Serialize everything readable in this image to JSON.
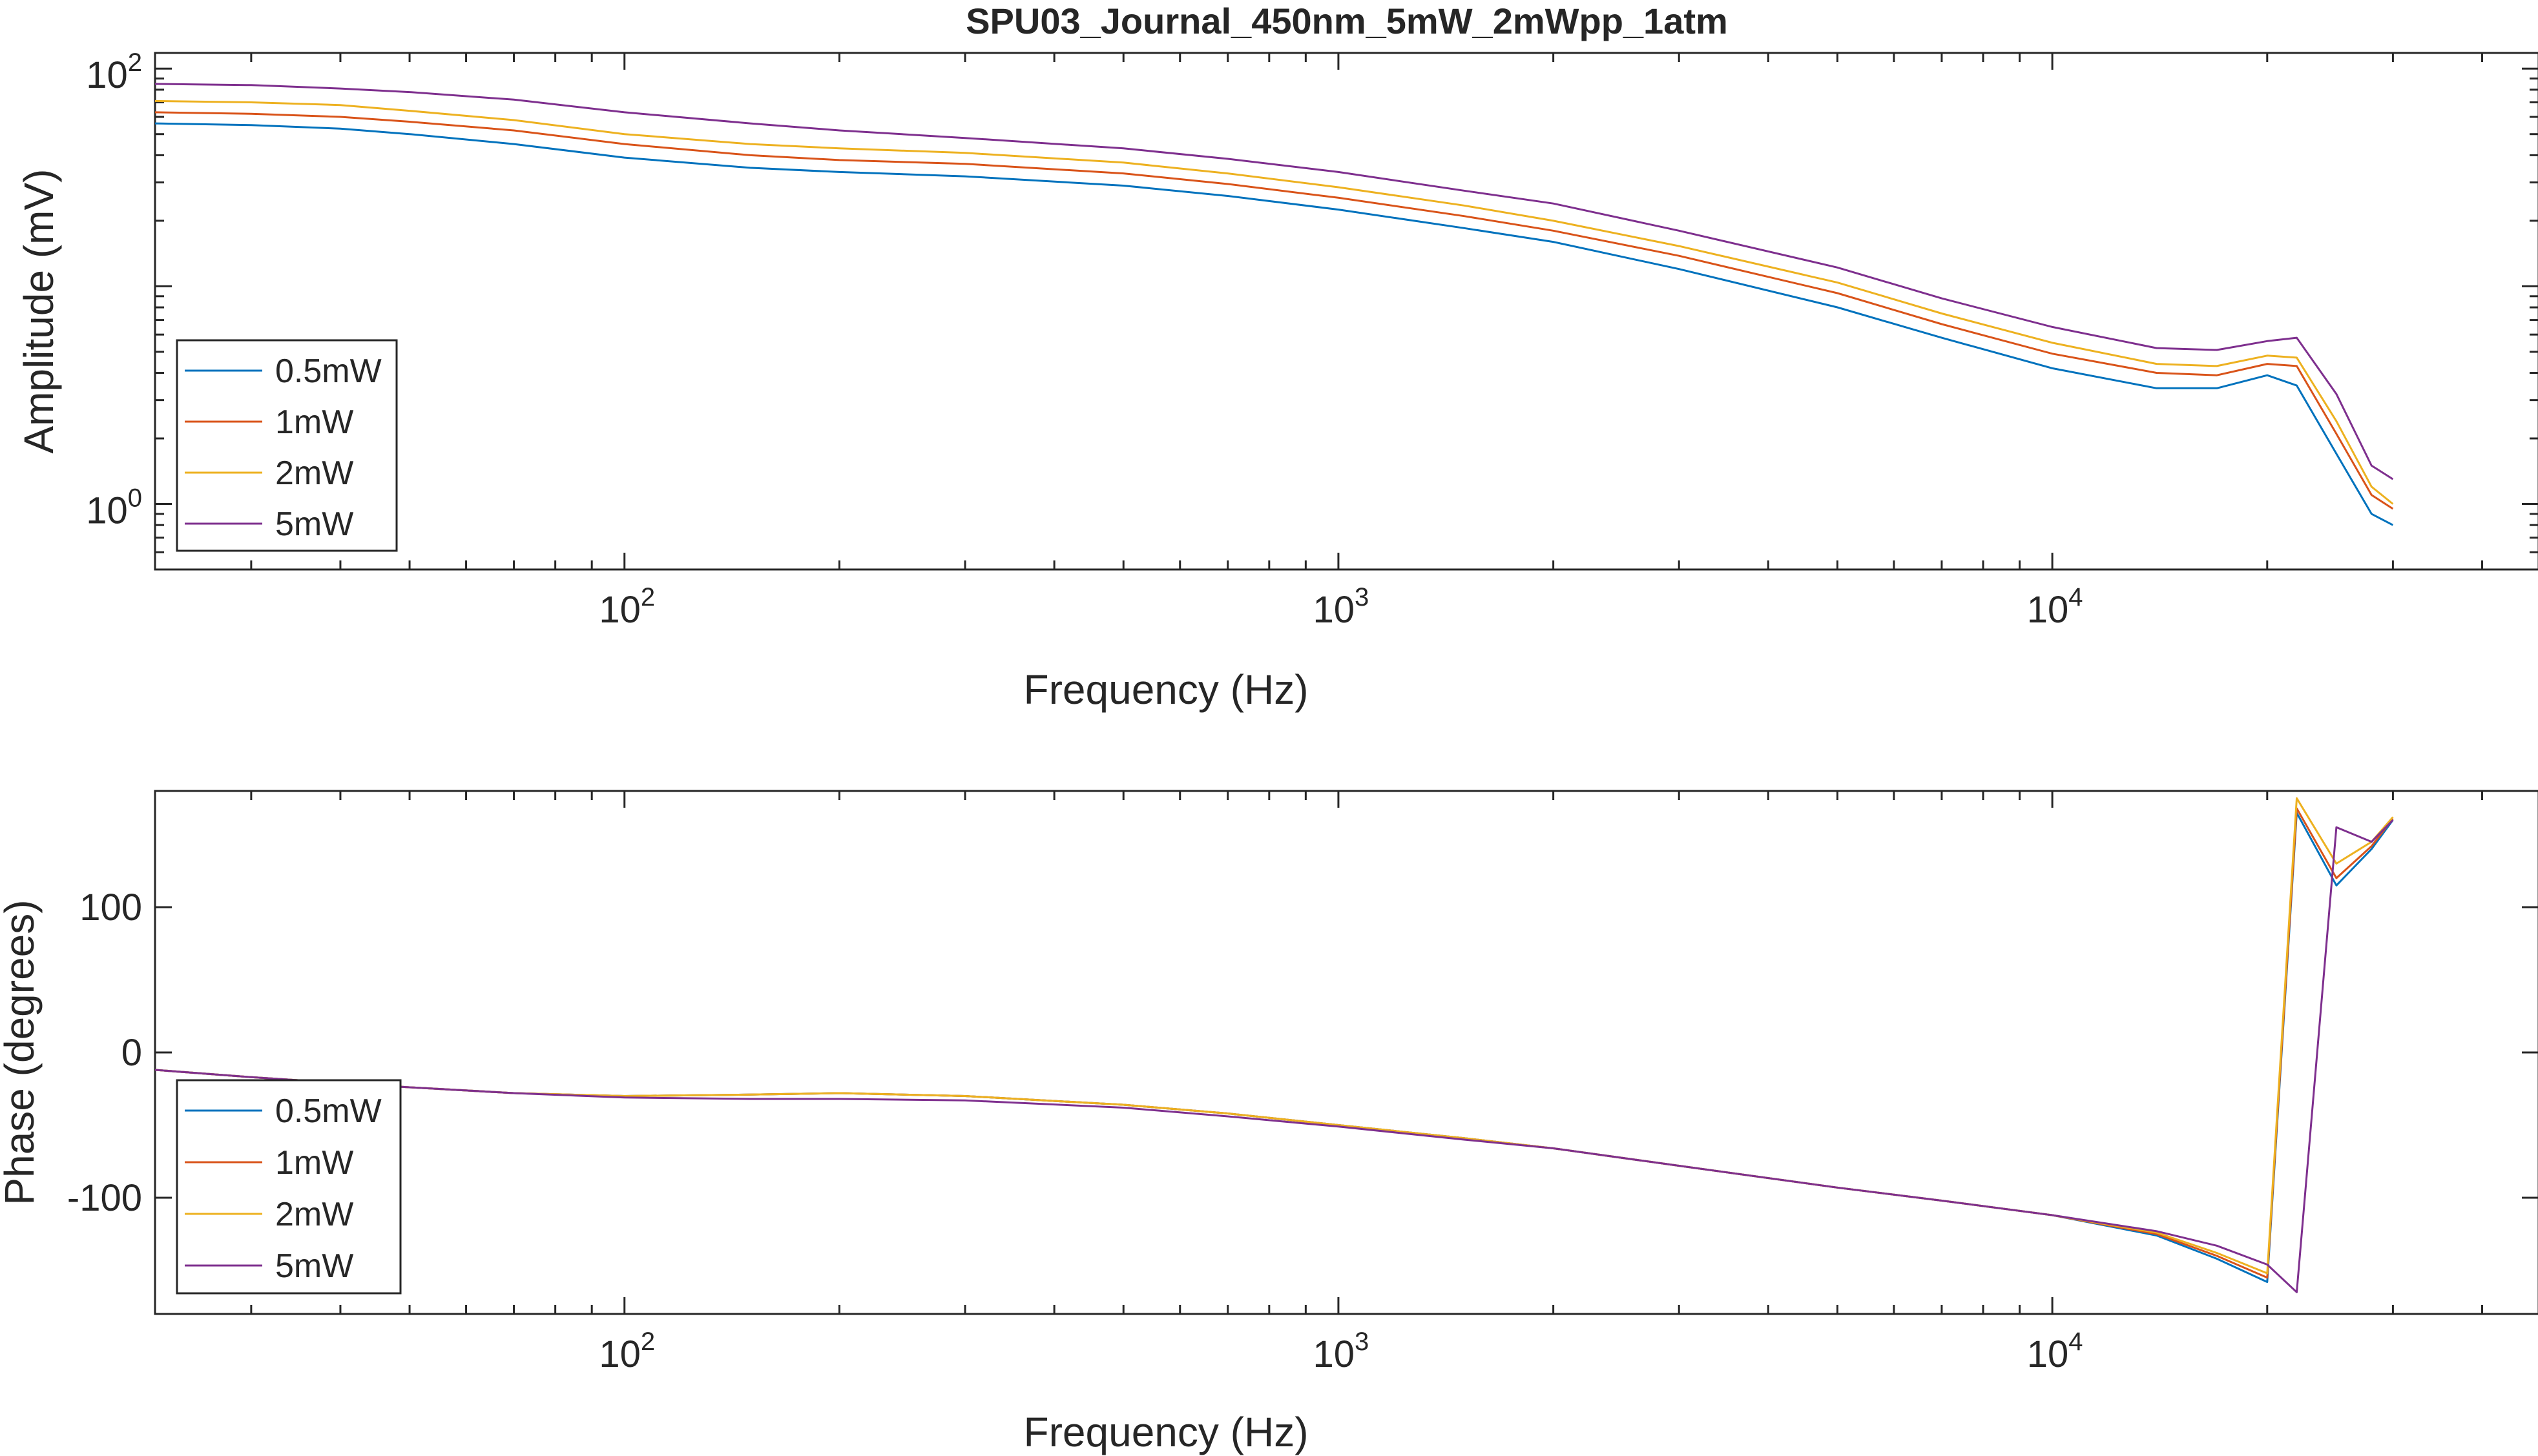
{
  "chart_data": [
    {
      "type": "line",
      "title": "SPU03_Journal_450nm_5mW_2mWpp_1atm",
      "xlabel": "Frequency (Hz)",
      "ylabel": "Amplitude (mV)",
      "xscale": "log",
      "yscale": "log",
      "xlim": [
        22,
        48000
      ],
      "ylim": [
        0.5,
        118
      ],
      "xticks": [
        {
          "value": 100,
          "base": "10",
          "exp": "2"
        },
        {
          "value": 1000,
          "base": "10",
          "exp": "3"
        },
        {
          "value": 10000,
          "base": "10",
          "exp": "4"
        }
      ],
      "yticks": [
        {
          "value": 1,
          "base": "10",
          "exp": "0"
        },
        {
          "value": 100,
          "base": "10",
          "exp": "2"
        }
      ],
      "grid": false,
      "legend_position": "lower-left",
      "x": [
        22,
        30,
        40,
        50,
        70,
        100,
        150,
        200,
        300,
        500,
        700,
        1000,
        1500,
        2000,
        3000,
        5000,
        7000,
        10000,
        14000,
        17000,
        20000,
        22000,
        25000,
        28000,
        30000
      ],
      "series": [
        {
          "name": "0.5mW",
          "color": "#0072BD",
          "values": [
            56,
            55,
            53,
            50,
            45,
            39,
            35,
            33.5,
            32,
            29,
            26,
            22.5,
            18.5,
            16,
            12,
            8,
            5.8,
            4.2,
            3.4,
            3.4,
            3.9,
            3.5,
            1.7,
            0.9,
            0.8
          ]
        },
        {
          "name": "1mW",
          "color": "#D95319",
          "values": [
            63,
            62,
            60,
            57,
            52,
            45,
            40,
            38,
            36.5,
            33,
            29.5,
            25.5,
            21,
            18,
            13.8,
            9.3,
            6.7,
            4.9,
            4,
            3.9,
            4.4,
            4.3,
            2.1,
            1.1,
            0.95
          ]
        },
        {
          "name": "2mW",
          "color": "#EDB120",
          "values": [
            71,
            70,
            68,
            64,
            58,
            50,
            45,
            43,
            41,
            37,
            33,
            28.5,
            23.5,
            20,
            15.3,
            10.4,
            7.5,
            5.5,
            4.4,
            4.3,
            4.8,
            4.7,
            2.4,
            1.2,
            1
          ]
        },
        {
          "name": "5mW",
          "color": "#7E2F8E",
          "values": [
            85,
            84,
            81,
            78,
            72,
            63,
            56,
            52,
            48,
            43,
            38.5,
            33.5,
            27.5,
            24,
            18,
            12.2,
            8.8,
            6.5,
            5.2,
            5.1,
            5.6,
            5.8,
            3.2,
            1.5,
            1.3
          ]
        }
      ]
    },
    {
      "type": "line",
      "xlabel": "Frequency (Hz)",
      "ylabel": "Phase (degrees)",
      "xscale": "log",
      "yscale": "linear",
      "xlim": [
        22,
        48000
      ],
      "ylim": [
        -180,
        180
      ],
      "xticks": [
        {
          "value": 100,
          "base": "10",
          "exp": "2"
        },
        {
          "value": 1000,
          "base": "10",
          "exp": "3"
        },
        {
          "value": 10000,
          "base": "10",
          "exp": "4"
        }
      ],
      "yticks": [
        {
          "value": -100,
          "label": "-100"
        },
        {
          "value": 0,
          "label": "0"
        },
        {
          "value": 100,
          "label": "100"
        }
      ],
      "grid": false,
      "legend_position": "lower-left",
      "series": [
        {
          "name": "0.5mW",
          "color": "#0072BD",
          "x": [
            22,
            30,
            40,
            50,
            70,
            100,
            150,
            200,
            300,
            500,
            700,
            1000,
            1500,
            2000,
            3000,
            5000,
            7000,
            10000,
            14000,
            17000,
            20000,
            22000,
            25000,
            28000,
            30000
          ],
          "y": [
            -12,
            -17,
            -21,
            -24,
            -28,
            -30,
            -29,
            -28,
            -30,
            -36,
            -42,
            -50,
            -59,
            -66,
            -78,
            -93,
            -102,
            -112,
            -126,
            -142,
            -158,
            165,
            115,
            140,
            160
          ]
        },
        {
          "name": "1mW",
          "color": "#D95319",
          "x": [
            22,
            30,
            40,
            50,
            70,
            100,
            150,
            200,
            300,
            500,
            700,
            1000,
            1500,
            2000,
            3000,
            5000,
            7000,
            10000,
            14000,
            17000,
            20000,
            22000,
            25000,
            28000,
            30000
          ],
          "y": [
            -12,
            -17,
            -21,
            -24,
            -28,
            -30,
            -29,
            -28,
            -30,
            -36,
            -42,
            -50,
            -59,
            -66,
            -78,
            -93,
            -102,
            -112,
            -125,
            -140,
            -155,
            168,
            120,
            142,
            161
          ]
        },
        {
          "name": "2mW",
          "color": "#EDB120",
          "x": [
            22,
            30,
            40,
            50,
            70,
            100,
            150,
            200,
            300,
            500,
            700,
            1000,
            1500,
            2000,
            3000,
            5000,
            7000,
            10000,
            14000,
            17000,
            20000,
            22000,
            25000,
            28000,
            30000
          ],
          "y": [
            -12,
            -17,
            -21,
            -24,
            -28,
            -30,
            -29,
            -28,
            -30,
            -36,
            -42,
            -50,
            -59,
            -66,
            -78,
            -93,
            -102,
            -112,
            -124,
            -138,
            -152,
            175,
            130,
            145,
            162
          ]
        },
        {
          "name": "5mW",
          "color": "#7E2F8E",
          "x": [
            22,
            30,
            40,
            50,
            70,
            100,
            150,
            200,
            300,
            500,
            700,
            1000,
            1500,
            2000,
            3000,
            5000,
            7000,
            10000,
            14000,
            17000,
            20000,
            22000,
            25000,
            28000,
            30000
          ],
          "y": [
            -12,
            -17,
            -21,
            -24,
            -28,
            -31,
            -32,
            -32,
            -33,
            -38,
            -44,
            -51,
            -60,
            -66,
            -78,
            -93,
            -102,
            -112,
            -123,
            -133,
            -146,
            -165,
            155,
            145,
            160
          ]
        }
      ]
    }
  ]
}
